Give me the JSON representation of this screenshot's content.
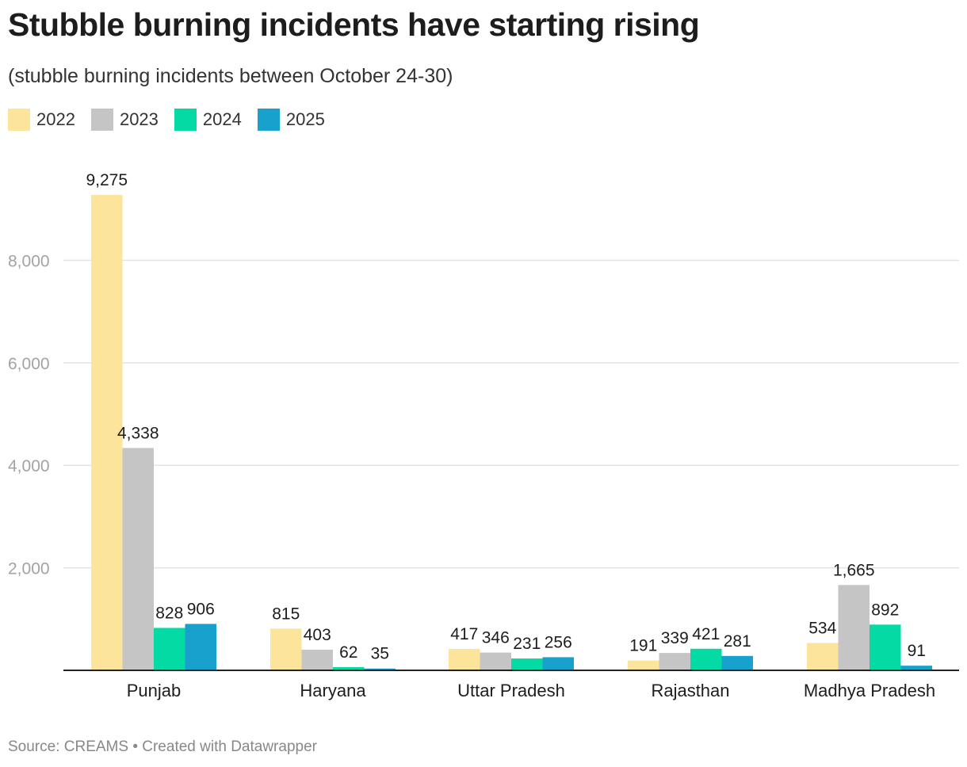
{
  "header": {
    "title": "Stubble burning incidents have starting rising",
    "subtitle": "(stubble burning incidents between October 24-30)"
  },
  "legend": [
    {
      "label": "2022",
      "color": "#fde49b"
    },
    {
      "label": "2023",
      "color": "#c5c5c5"
    },
    {
      "label": "2024",
      "color": "#04dba4"
    },
    {
      "label": "2025",
      "color": "#18a1cd"
    }
  ],
  "footer": {
    "source": "Source: CREAMS • Created with Datawrapper"
  },
  "chart_data": {
    "type": "bar",
    "categories": [
      "Punjab",
      "Haryana",
      "Uttar Pradesh",
      "Rajasthan",
      "Madhya Pradesh"
    ],
    "series": [
      {
        "name": "2022",
        "color": "#fde49b",
        "values": [
          9275,
          815,
          417,
          191,
          534
        ],
        "labels": [
          "9,275",
          "815",
          "417",
          "191",
          "534"
        ]
      },
      {
        "name": "2023",
        "color": "#c5c5c5",
        "values": [
          4338,
          403,
          346,
          339,
          1665
        ],
        "labels": [
          "4,338",
          "403",
          "346",
          "339",
          "1,665"
        ]
      },
      {
        "name": "2024",
        "color": "#04dba4",
        "values": [
          828,
          62,
          231,
          421,
          892
        ],
        "labels": [
          "828",
          "62",
          "231",
          "421",
          "892"
        ]
      },
      {
        "name": "2025",
        "color": "#18a1cd",
        "values": [
          906,
          35,
          256,
          281,
          91
        ],
        "labels": [
          "906",
          "35",
          "256",
          "281",
          "91"
        ]
      }
    ],
    "yticks": [
      2000,
      4000,
      6000,
      8000
    ],
    "ytick_labels": [
      "2,000",
      "4,000",
      "6,000",
      "8,000"
    ],
    "ylim": [
      0,
      9275
    ],
    "grid": true,
    "legend_position": "top-left"
  }
}
